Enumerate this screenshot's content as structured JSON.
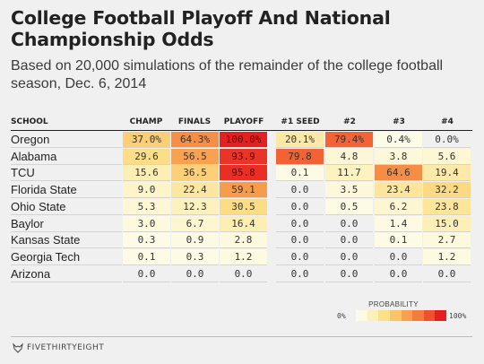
{
  "title": "College Football Playoff And National Championship Odds",
  "subtitle": "Based on 20,000 simulations of the remainder of the college football season, Dec. 6, 2014",
  "headers": {
    "school": "SCHOOL",
    "champ": "CHAMP",
    "finals": "FINALS",
    "playoff": "PLAYOFF",
    "seed1": "#1 SEED",
    "seed2": "#2",
    "seed3": "#3",
    "seed4": "#4"
  },
  "rows": [
    {
      "team": "Oregon",
      "values": [
        "37.0%",
        "64.3%",
        "100.0%",
        "20.1%",
        "79.4%",
        "0.4%",
        "0.0%"
      ]
    },
    {
      "team": "Alabama",
      "values": [
        "29.6",
        "56.5",
        "93.9",
        "79.8",
        "4.8",
        "3.8",
        "5.6"
      ]
    },
    {
      "team": "TCU",
      "values": [
        "15.6",
        "36.5",
        "95.8",
        "0.1",
        "11.7",
        "64.6",
        "19.4"
      ]
    },
    {
      "team": "Florida State",
      "values": [
        "9.0",
        "22.4",
        "59.1",
        "0.0",
        "3.5",
        "23.4",
        "32.2"
      ]
    },
    {
      "team": "Ohio State",
      "values": [
        "5.3",
        "12.3",
        "30.5",
        "0.0",
        "0.5",
        "6.2",
        "23.8"
      ]
    },
    {
      "team": "Baylor",
      "values": [
        "3.0",
        "6.7",
        "16.4",
        "0.0",
        "0.0",
        "1.4",
        "15.0"
      ]
    },
    {
      "team": "Kansas State",
      "values": [
        "0.3",
        "0.9",
        "2.8",
        "0.0",
        "0.0",
        "0.1",
        "2.7"
      ]
    },
    {
      "team": "Georgia Tech",
      "values": [
        "0.1",
        "0.3",
        "1.2",
        "0.0",
        "0.0",
        "0.0",
        "1.2"
      ]
    },
    {
      "team": "Arizona",
      "values": [
        "0.0",
        "0.0",
        "0.0",
        "0.0",
        "0.0",
        "0.0",
        "0.0"
      ]
    }
  ],
  "legend": {
    "title": "PROBABILITY",
    "min_label": "0%",
    "max_label": "100%",
    "colors": [
      "#fdfbe6",
      "#fdf0b8",
      "#fde08a",
      "#fbc46a",
      "#f8a050",
      "#f47c3c",
      "#f05030",
      "#e62020"
    ]
  },
  "footer": {
    "brand": "FIVETHIRTYEIGHT",
    "logo_icon": "fox-icon"
  }
}
